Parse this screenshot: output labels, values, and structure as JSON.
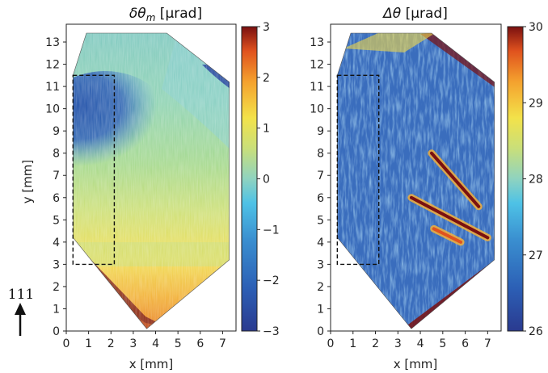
{
  "chart_data": [
    {
      "type": "heatmap",
      "title": "δθm [µrad]",
      "title_parts": {
        "pre": "δθ",
        "sub": "m",
        "post": " [µrad]"
      },
      "xlabel": "x [mm]",
      "ylabel": "y [mm]",
      "xlim": [
        0,
        7.6
      ],
      "ylim": [
        0,
        13.8
      ],
      "xticks": [
        0,
        1,
        2,
        3,
        4,
        5,
        6,
        7
      ],
      "yticks": [
        0,
        1,
        2,
        3,
        4,
        5,
        6,
        7,
        8,
        9,
        10,
        11,
        12,
        13
      ],
      "colormap": "jet",
      "colorbar": {
        "min": -3,
        "max": 3,
        "ticks": [
          3,
          2,
          1,
          0,
          -1,
          -2,
          -3
        ],
        "tick_labels": [
          "3",
          "2",
          "1",
          "0",
          "−1",
          "−2",
          "−3"
        ]
      },
      "crystal_outline": [
        [
          3.6,
          0.1
        ],
        [
          7.3,
          3.2
        ],
        [
          7.3,
          11.2
        ],
        [
          4.5,
          13.4
        ],
        [
          0.9,
          13.4
        ],
        [
          0.3,
          11.5
        ],
        [
          0.3,
          4.2
        ]
      ],
      "selection_box": {
        "x0": 0.3,
        "x1": 2.15,
        "y0": 3.0,
        "y1": 11.5
      },
      "regions": [
        {
          "area": "upper-left band",
          "value": -2.5
        },
        {
          "area": "upper-right corner",
          "value": -2.7
        },
        {
          "area": "center",
          "value": -0.3
        },
        {
          "area": "lower middle",
          "value": 0.8
        },
        {
          "area": "bottom edge",
          "value": 2.8
        }
      ]
    },
    {
      "type": "heatmap",
      "title": "Δθ [µrad]",
      "title_parts": {
        "pre": "Δθ",
        "sub": "",
        "post": " [µrad]"
      },
      "xlabel": "x [mm]",
      "ylabel": "",
      "xlim": [
        0,
        7.6
      ],
      "ylim": [
        0,
        13.8
      ],
      "xticks": [
        0,
        1,
        2,
        3,
        4,
        5,
        6,
        7
      ],
      "yticks": [
        0,
        1,
        2,
        3,
        4,
        5,
        6,
        7,
        8,
        9,
        10,
        11,
        12,
        13
      ],
      "colormap": "jet",
      "colorbar": {
        "min": 26,
        "max": 30,
        "ticks": [
          30,
          29,
          28,
          27,
          26
        ],
        "tick_labels": [
          "30",
          "29",
          "28",
          "27",
          "26"
        ]
      },
      "crystal_outline": [
        [
          3.6,
          0.1
        ],
        [
          7.3,
          3.2
        ],
        [
          7.3,
          11.2
        ],
        [
          4.5,
          13.4
        ],
        [
          0.9,
          13.4
        ],
        [
          0.3,
          11.5
        ],
        [
          0.3,
          4.2
        ]
      ],
      "selection_box": {
        "x0": 0.3,
        "x1": 2.15,
        "y0": 3.0,
        "y1": 11.5
      },
      "features": [
        {
          "from": [
            4.5,
            8.0
          ],
          "to": [
            6.6,
            5.6
          ],
          "value": 29.8
        },
        {
          "from": [
            3.6,
            6.0
          ],
          "to": [
            7.0,
            4.2
          ],
          "value": 29.8
        },
        {
          "from": [
            4.6,
            4.6
          ],
          "to": [
            5.8,
            4.0
          ],
          "value": 29.0
        }
      ],
      "background_value": 27.0
    }
  ],
  "direction_label": "111"
}
